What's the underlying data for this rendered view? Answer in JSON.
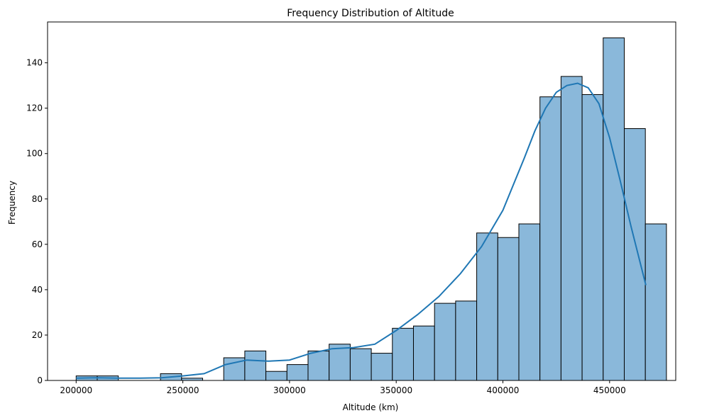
{
  "chart_data": {
    "type": "bar",
    "subtype": "histogram_with_kde",
    "title": "Frequency Distribution of Altitude",
    "xlabel": "Altitude (km)",
    "ylabel": "Frequency",
    "xlim": [
      186600,
      481000
    ],
    "ylim": [
      0,
      158
    ],
    "xticks": [
      200000,
      250000,
      300000,
      350000,
      400000,
      450000
    ],
    "yticks": [
      0,
      20,
      40,
      60,
      80,
      100,
      120,
      140
    ],
    "bin_start": 200000,
    "bin_width": 9880,
    "values": [
      2,
      2,
      0,
      0,
      3,
      1,
      0,
      10,
      13,
      4,
      7,
      13,
      16,
      14,
      12,
      23,
      24,
      34,
      35,
      65,
      63,
      69,
      125,
      134,
      126,
      151,
      111,
      69
    ],
    "bar_color": "#8ab8da",
    "edge_color": "#000000",
    "kde_color": "#1f77b4",
    "kde": {
      "x": [
        200000,
        210000,
        220000,
        230000,
        240000,
        250000,
        260000,
        270000,
        280000,
        290000,
        300000,
        310000,
        320000,
        330000,
        340000,
        350000,
        360000,
        370000,
        380000,
        390000,
        400000,
        410000,
        415000,
        420000,
        425000,
        430000,
        435000,
        440000,
        445000,
        450000,
        455000,
        460000,
        467000
      ],
      "y": [
        1,
        1.2,
        1,
        1,
        1.2,
        2,
        3,
        7,
        9,
        8.5,
        9,
        12,
        14,
        14.5,
        16,
        22,
        29,
        37,
        47,
        59,
        75,
        98,
        110,
        120,
        127,
        130,
        131,
        129,
        122,
        107,
        88,
        68,
        42
      ]
    },
    "grid": false
  }
}
